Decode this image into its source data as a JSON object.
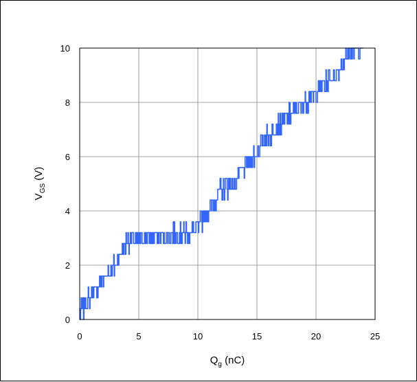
{
  "chart_data": {
    "type": "line",
    "title": "",
    "xlabel": {
      "main": "Q",
      "sub": "g",
      "unit": " (nC)"
    },
    "ylabel": {
      "main": "V",
      "sub": "GS",
      "unit": " (V)"
    },
    "xlim": [
      0,
      25
    ],
    "ylim": [
      0,
      10
    ],
    "xticks": [
      "0",
      "5",
      "10",
      "15",
      "20",
      "25"
    ],
    "yticks": [
      "0",
      "2",
      "4",
      "6",
      "8",
      "10"
    ],
    "grid": true,
    "legend": "none",
    "series": [
      {
        "color": "#3366ff",
        "x": [
          0,
          0.5,
          1,
          1.5,
          2,
          2.5,
          3,
          3.5,
          4,
          5,
          6,
          7,
          8,
          9,
          9.5,
          10,
          10.5,
          11,
          12,
          13,
          14,
          15,
          16,
          17,
          18,
          19,
          20,
          21,
          22,
          23,
          23.5,
          24
        ],
        "y": [
          0.2,
          0.6,
          0.9,
          1.2,
          1.5,
          1.8,
          2.0,
          2.4,
          2.9,
          3.0,
          3.0,
          3.1,
          3.2,
          3.2,
          3.2,
          3.4,
          3.8,
          4.2,
          4.8,
          5.0,
          5.6,
          6.2,
          6.8,
          7.2,
          7.6,
          8.0,
          8.3,
          8.8,
          9.3,
          9.9,
          10.0,
          10.0
        ],
        "noise": 0.35
      }
    ]
  }
}
